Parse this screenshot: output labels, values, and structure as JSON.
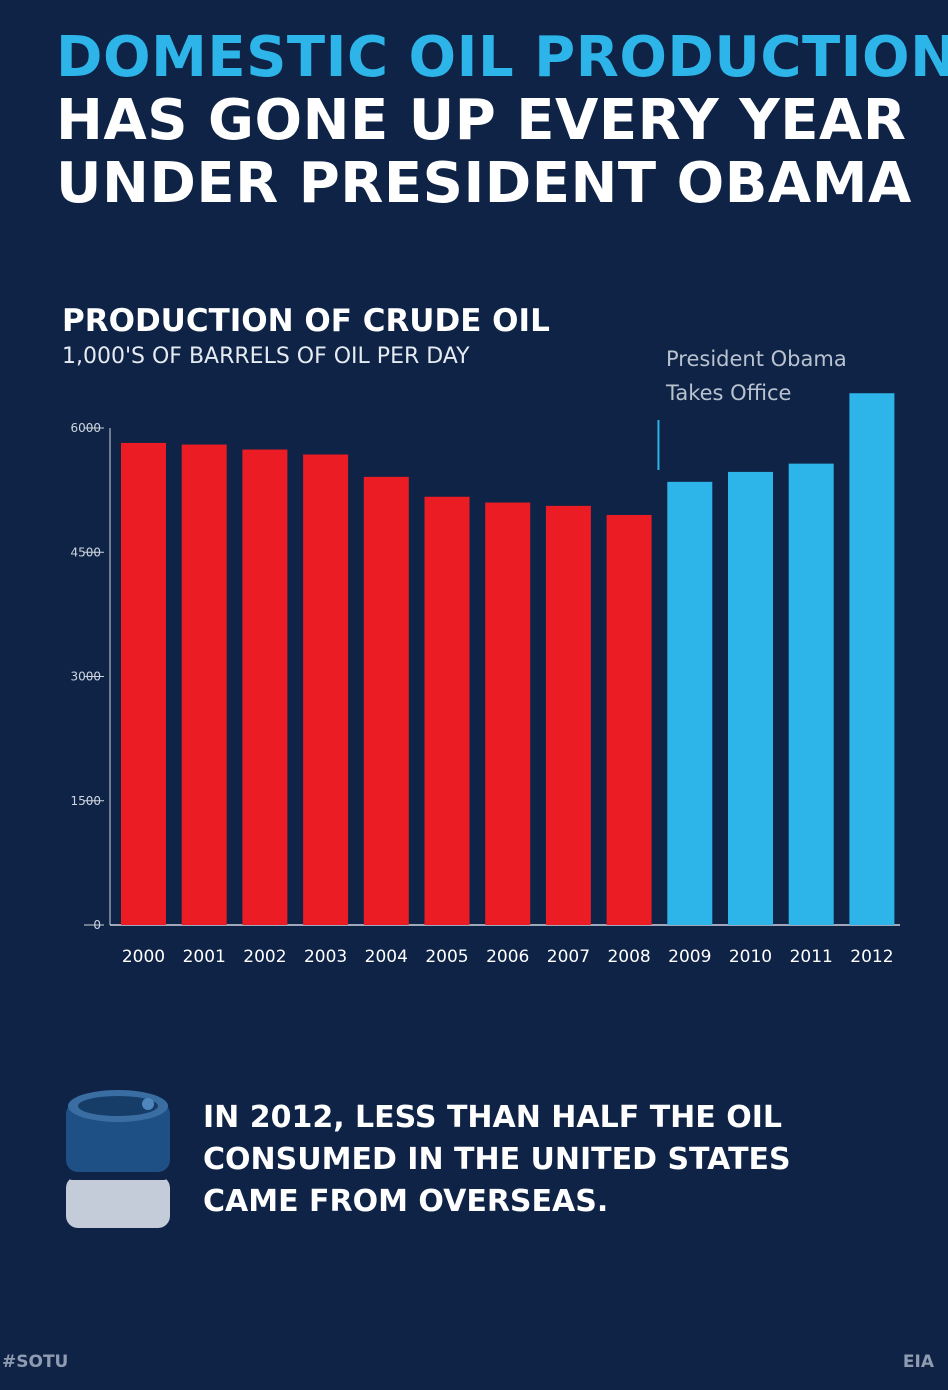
{
  "headline": {
    "line1": "DOMESTIC OIL PRODUCTION",
    "line2": "HAS GONE UP EVERY YEAR",
    "line3": "UNDER PRESIDENT OBAMA"
  },
  "annotation": {
    "line1": "President Obama",
    "line2": "Takes Office"
  },
  "footnote": {
    "line1": "IN 2012, LESS THAN HALF THE OIL",
    "line2": "CONSUMED IN THE UNITED STATES",
    "line3": "CAME FROM OVERSEAS."
  },
  "footer": {
    "hashtag": "#SOTU",
    "source": "EIA"
  },
  "icons": {
    "barrel": "oil-barrel-icon"
  },
  "colors": {
    "background": "#0e2346",
    "pre_obama": "#ec1c24",
    "obama": "#2db4e8",
    "headline_accent": "#2db4e8"
  },
  "chart_data": {
    "type": "bar",
    "title": "PRODUCTION OF CRUDE OIL",
    "subtitle": "1,000'S OF BARRELS OF OIL PER DAY",
    "categories": [
      "2000",
      "2001",
      "2002",
      "2003",
      "2004",
      "2005",
      "2006",
      "2007",
      "2008",
      "2009",
      "2010",
      "2011",
      "2012"
    ],
    "values": [
      5820,
      5800,
      5740,
      5680,
      5410,
      5170,
      5100,
      5060,
      4950,
      5350,
      5470,
      5570,
      6420
    ],
    "colors": [
      "#ec1c24",
      "#ec1c24",
      "#ec1c24",
      "#ec1c24",
      "#ec1c24",
      "#ec1c24",
      "#ec1c24",
      "#ec1c24",
      "#ec1c24",
      "#2db4e8",
      "#2db4e8",
      "#2db4e8",
      "#2db4e8"
    ],
    "yticks": [
      "6000",
      "4500",
      "3000",
      "1500",
      "0"
    ],
    "ylim": [
      0,
      6000
    ],
    "grid": false,
    "annotation_after_category": "2008"
  }
}
